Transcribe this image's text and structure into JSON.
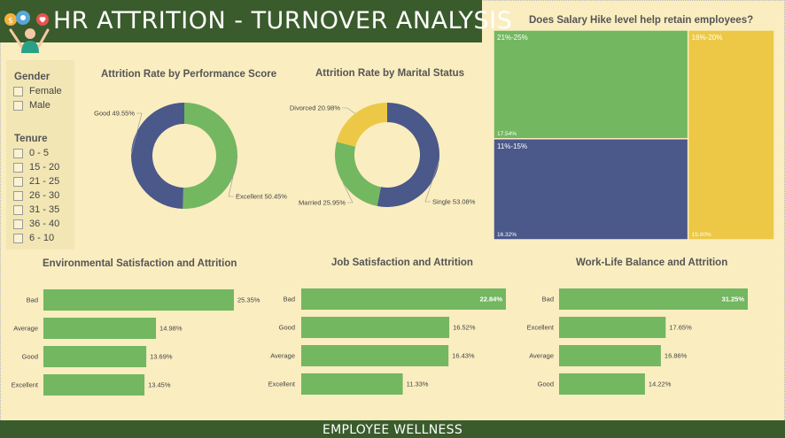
{
  "header": {
    "title": "HR ATTRITION - TURNOVER ANALYSIS",
    "logo_icon": "hr-people-icon"
  },
  "footer": {
    "text": "EMPLOYEE WELLNESS"
  },
  "colors": {
    "green": "#73b761",
    "navy": "#4a588a",
    "yellow": "#ecc846",
    "header_bg": "#3a5b2c",
    "page_bg": "#faedc0"
  },
  "slicers": {
    "gender": {
      "title": "Gender",
      "options": [
        "Female",
        "Male"
      ]
    },
    "tenure": {
      "title": "Tenure",
      "options": [
        "0 - 5",
        "15 - 20",
        "21 - 25",
        "26 - 30",
        "31 - 35",
        "36 - 40",
        "6 - 10"
      ]
    }
  },
  "chart_data": [
    {
      "id": "performance",
      "type": "pie",
      "title": "Attrition Rate by Performance Score",
      "slices": [
        {
          "label": "Excellent",
          "value": 50.45,
          "display": "50.45%",
          "color": "#73b761"
        },
        {
          "label": "Good",
          "value": 49.55,
          "display": "49.55%",
          "color": "#4a588a"
        }
      ]
    },
    {
      "id": "marital",
      "type": "pie",
      "title": "Attrition Rate by Marital Status",
      "slices": [
        {
          "label": "Single",
          "value": 53.08,
          "display": "53.08%",
          "color": "#4a588a"
        },
        {
          "label": "Married",
          "value": 25.95,
          "display": "25.95%",
          "color": "#73b761"
        },
        {
          "label": "Divorced",
          "value": 20.98,
          "display": "20.98%",
          "color": "#ecc846"
        }
      ]
    },
    {
      "id": "salary",
      "type": "treemap",
      "title": "Does Salary Hike level help retain employees?",
      "items": [
        {
          "label": "21%-25%",
          "value": 17.54,
          "display": "17.54%",
          "color": "#73b761"
        },
        {
          "label": "11%-15%",
          "value": 16.32,
          "display": "16.32%",
          "color": "#4a588a"
        },
        {
          "label": "16%-20%",
          "value": 15.0,
          "display": "15.00%",
          "color": "#ecc846"
        }
      ]
    },
    {
      "id": "env",
      "type": "bar",
      "title": "Environmental Satisfaction and Attrition",
      "categories": [
        "Bad",
        "Average",
        "Good",
        "Excellent"
      ],
      "values": [
        25.35,
        14.98,
        13.69,
        13.45
      ],
      "labels": [
        "25.35%",
        "14.98%",
        "13.69%",
        "13.45%"
      ]
    },
    {
      "id": "job",
      "type": "bar",
      "title": "Job Satisfaction and Attrition",
      "categories": [
        "Bad",
        "Good",
        "Average",
        "Excellent"
      ],
      "values": [
        22.84,
        16.52,
        16.43,
        11.33
      ],
      "labels": [
        "22.84%",
        "16.52%",
        "16.43%",
        "11.33%"
      ]
    },
    {
      "id": "wlb",
      "type": "bar",
      "title": "Work-Life Balance and Attrition",
      "categories": [
        "Bad",
        "Excellent",
        "Average",
        "Good"
      ],
      "values": [
        31.25,
        17.65,
        16.86,
        14.22
      ],
      "labels": [
        "31.25%",
        "17.65%",
        "16.86%",
        "14.22%"
      ]
    }
  ]
}
